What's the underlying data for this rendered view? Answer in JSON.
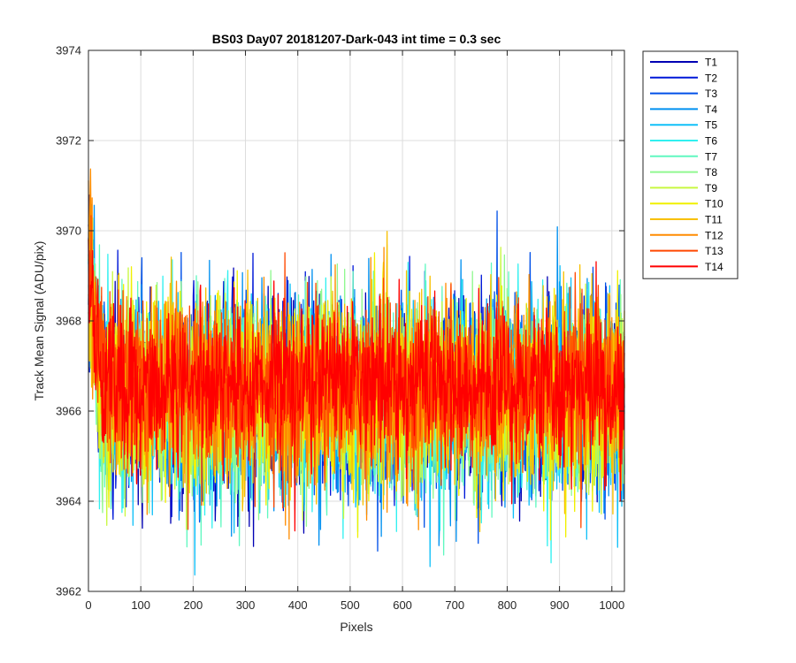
{
  "chart_data": {
    "type": "line",
    "title": "BS03 Day07 20181207-Dark-043 int time = 0.3 sec",
    "xlabel": "Pixels",
    "ylabel": "Track Mean Signal (ADU/pix)",
    "xlim": [
      0,
      1024
    ],
    "ylim": [
      3962,
      3974
    ],
    "xticks": [
      "0",
      "100",
      "200",
      "300",
      "400",
      "500",
      "600",
      "700",
      "800",
      "900",
      "1000"
    ],
    "yticks": [
      "3962",
      "3964",
      "3966",
      "3968",
      "3970",
      "3972",
      "3974"
    ],
    "grid": true,
    "legend_position": "outside-top-right",
    "n_points": 1024,
    "series": [
      {
        "name": "T1",
        "color": "#0000b4",
        "mean": 3966.3,
        "std": 1.05
      },
      {
        "name": "T2",
        "color": "#0018d8",
        "mean": 3966.3,
        "std": 1.05
      },
      {
        "name": "T3",
        "color": "#0050e8",
        "mean": 3966.3,
        "std": 1.05
      },
      {
        "name": "T4",
        "color": "#0090f0",
        "mean": 3966.3,
        "std": 1.05
      },
      {
        "name": "T5",
        "color": "#10c0f8",
        "mean": 3966.3,
        "std": 1.05
      },
      {
        "name": "T6",
        "color": "#30f0f0",
        "mean": 3966.3,
        "std": 1.05
      },
      {
        "name": "T7",
        "color": "#60f8c0",
        "mean": 3966.3,
        "std": 1.05
      },
      {
        "name": "T8",
        "color": "#90f890",
        "mean": 3966.3,
        "std": 1.05
      },
      {
        "name": "T9",
        "color": "#c8f840",
        "mean": 3966.3,
        "std": 1.05
      },
      {
        "name": "T10",
        "color": "#f0f000",
        "mean": 3966.3,
        "std": 1.05
      },
      {
        "name": "T11",
        "color": "#f8c000",
        "mean": 3966.4,
        "std": 1.0
      },
      {
        "name": "T12",
        "color": "#ff8c00",
        "mean": 3966.5,
        "std": 0.95
      },
      {
        "name": "T13",
        "color": "#ff4800",
        "mean": 3966.6,
        "std": 0.9
      },
      {
        "name": "T14",
        "color": "#ff0000",
        "mean": 3966.6,
        "std": 0.85
      }
    ]
  }
}
